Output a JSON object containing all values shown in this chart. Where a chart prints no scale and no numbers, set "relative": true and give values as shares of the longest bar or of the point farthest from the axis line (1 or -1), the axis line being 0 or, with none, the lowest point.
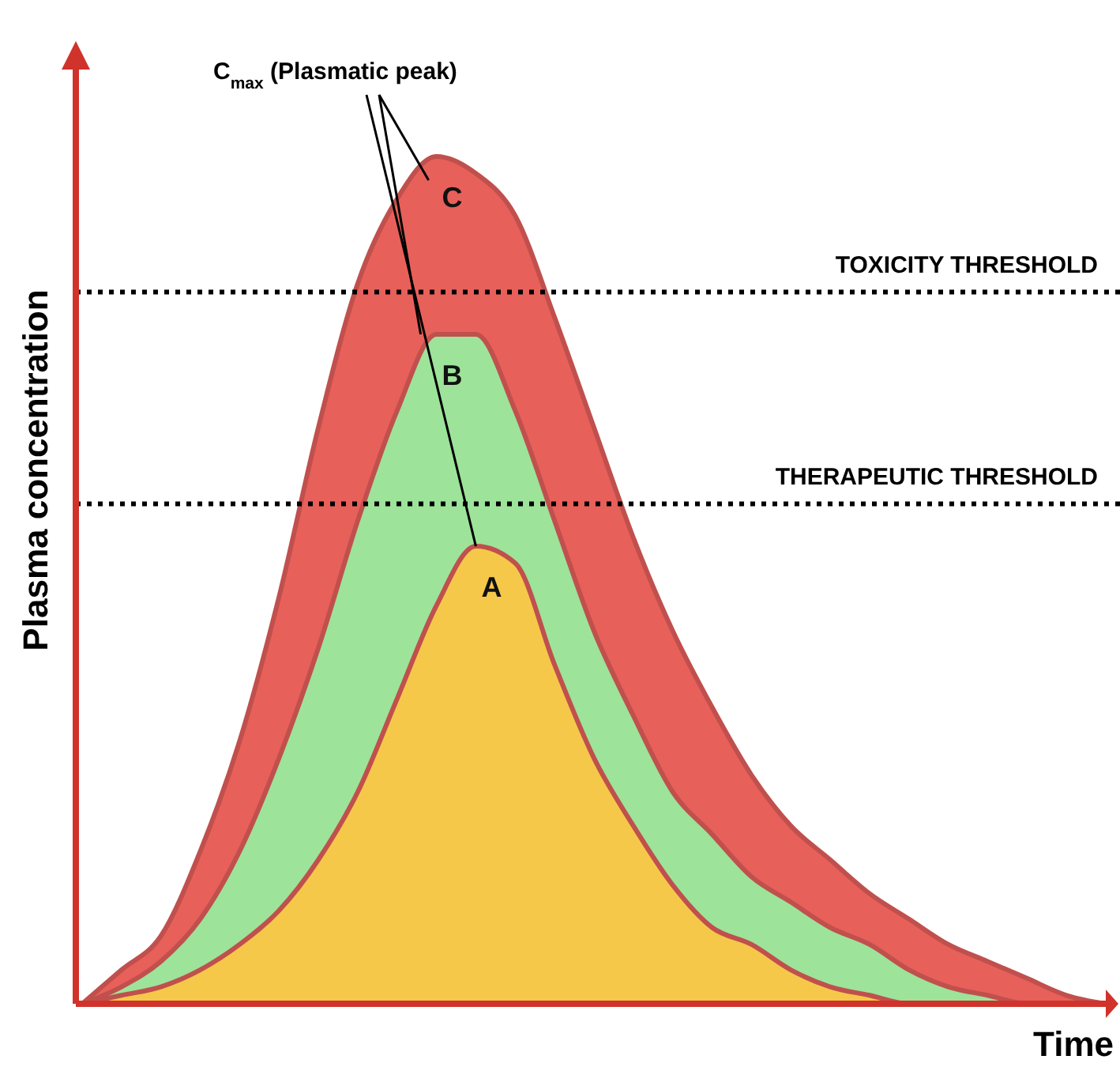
{
  "chart_data": {
    "type": "area",
    "relative": true,
    "xlabel": "Time",
    "ylabel": "Plasma concentration",
    "categories": [
      null,
      null,
      null,
      null,
      null,
      null,
      null,
      null,
      null,
      null,
      null,
      null,
      null,
      null,
      null,
      null,
      null,
      null,
      null,
      null,
      null,
      null,
      null,
      null,
      null,
      null,
      null
    ],
    "series": [
      {
        "name": "C",
        "color": "#e8605a",
        "values": [
          0,
          0.04,
          0.08,
          0.18,
          0.31,
          0.48,
          0.68,
          0.85,
          0.95,
          1,
          0.98,
          0.93,
          0.81,
          0.68,
          0.55,
          0.44,
          0.35,
          0.27,
          0.21,
          0.17,
          0.13,
          0.1,
          0.07,
          0.05,
          0.03,
          0.01,
          0
        ]
      },
      {
        "name": "B",
        "color": "#9de39a",
        "values": [
          0,
          0.02,
          0.05,
          0.1,
          0.18,
          0.29,
          0.42,
          0.57,
          0.7,
          0.79,
          0.79,
          0.7,
          0.57,
          0.44,
          0.34,
          0.25,
          0.2,
          0.15,
          0.12,
          0.09,
          0.07,
          0.04,
          0.02,
          0.01,
          0,
          0,
          0
        ]
      },
      {
        "name": "A",
        "color": "#f5c84a",
        "values": [
          0,
          0.01,
          0.02,
          0.04,
          0.07,
          0.11,
          0.17,
          0.25,
          0.36,
          0.47,
          0.54,
          0.52,
          0.4,
          0.29,
          0.21,
          0.14,
          0.09,
          0.07,
          0.04,
          0.02,
          0.01,
          0,
          0,
          0,
          0,
          0,
          0
        ]
      }
    ],
    "ref_lines": [
      {
        "axis": "y",
        "value": 0.84,
        "label": "TOXICITY THRESHOLD",
        "line_style": "dotted",
        "color": "#000000"
      },
      {
        "axis": "y",
        "value": 0.59,
        "label": "THERAPEUTIC THRESHOLD",
        "line_style": "dotted",
        "color": "#000000"
      }
    ],
    "annotations": [
      "C$_{max}$ (Plasmatic peak)"
    ]
  }
}
